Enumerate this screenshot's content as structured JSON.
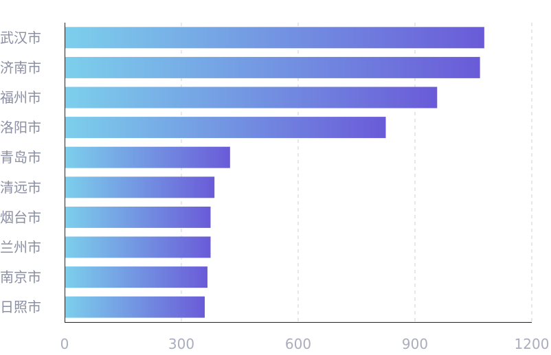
{
  "chart_data": {
    "type": "bar",
    "orientation": "horizontal",
    "categories": [
      "武汉市",
      "济南市",
      "福州市",
      "洛阳市",
      "青岛市",
      "清远市",
      "烟台市",
      "兰州市",
      "南京市",
      "日照市"
    ],
    "values": [
      1078,
      1067,
      957,
      825,
      425,
      385,
      375,
      375,
      367,
      360
    ],
    "xlim": [
      0,
      1200
    ],
    "xticks": [
      "0",
      "300",
      "600",
      "900",
      "1200"
    ],
    "grid": "vertical-dashed",
    "colors": {
      "gradient_start": "#7ccfec",
      "gradient_end": "#6a5bd8"
    }
  }
}
